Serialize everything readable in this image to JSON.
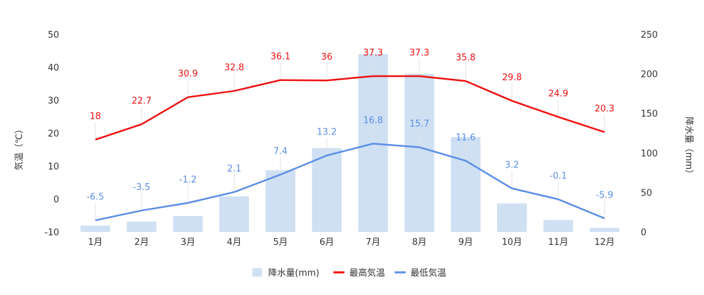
{
  "colors": {
    "precip": "#cfe0f3",
    "max": "#ee1111",
    "min": "#5b8ee6",
    "label_line": "#e3e3e3"
  },
  "chart_data": {
    "type": "bar+line",
    "categories": [
      "1月",
      "2月",
      "3月",
      "4月",
      "5月",
      "6月",
      "7月",
      "8月",
      "9月",
      "10月",
      "11月",
      "12月"
    ],
    "series": [
      {
        "name": "降水量(mm)",
        "type": "bar",
        "axis": "right",
        "values": [
          8,
          13,
          20,
          45,
          78,
          106,
          225,
          200,
          120,
          36,
          15,
          5
        ]
      },
      {
        "name": "最高気温",
        "type": "line",
        "axis": "left",
        "values": [
          18,
          22.7,
          30.9,
          32.8,
          36.1,
          36,
          37.3,
          37.3,
          35.8,
          29.8,
          24.9,
          20.3
        ]
      },
      {
        "name": "最低気温",
        "type": "line",
        "axis": "left",
        "values": [
          -6.5,
          -3.5,
          -1.2,
          2.1,
          7.4,
          13.2,
          16.8,
          15.7,
          11.6,
          3.2,
          -0.1,
          -5.9
        ]
      }
    ],
    "ylabel": "気温（℃）",
    "y2label": "降水量（mm）",
    "ylim": [
      -10,
      50
    ],
    "y2lim": [
      0,
      250
    ],
    "yticks": [
      -10,
      0,
      10,
      20,
      30,
      40,
      50
    ],
    "y2ticks": [
      0,
      50,
      100,
      150,
      200,
      250
    ],
    "legend_position": "bottom",
    "data_labels": "temperature series"
  }
}
